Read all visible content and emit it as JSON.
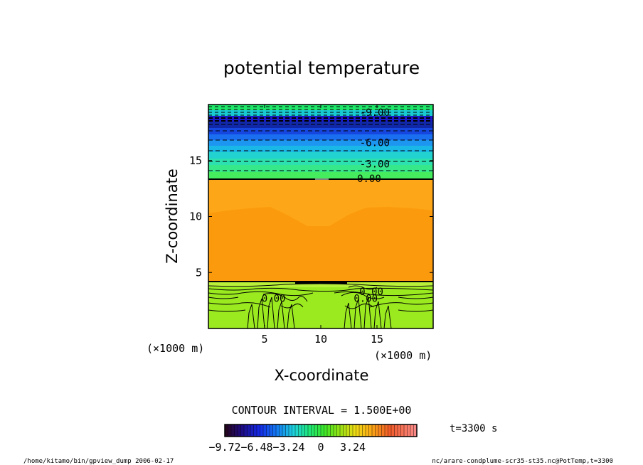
{
  "chart_data": {
    "type": "heatmap",
    "title": "potential temperature",
    "xlabel": "X-coordinate",
    "ylabel": "Z-coordinate",
    "x_unit": "(×1000 m)",
    "y_unit": "(×1000 m)",
    "xlim": [
      0,
      20
    ],
    "ylim": [
      0,
      20
    ],
    "x_ticks": [
      {
        "value": 5,
        "label": "5"
      },
      {
        "value": 10,
        "label": "10"
      },
      {
        "value": 15,
        "label": "15"
      }
    ],
    "y_ticks": [
      {
        "value": 5,
        "label": "5"
      },
      {
        "value": 10,
        "label": "10"
      },
      {
        "value": 15,
        "label": "15"
      }
    ],
    "contour_labels": [
      {
        "text": "-9.00",
        "x": 14.8,
        "z": 19.3
      },
      {
        "text": "-6.00",
        "x": 14.8,
        "z": 16.6
      },
      {
        "text": "-3.00",
        "x": 14.8,
        "z": 14.7
      },
      {
        "text": "0.00",
        "x": 14.3,
        "z": 13.4
      },
      {
        "text": "0.00",
        "x": 5.8,
        "z": 2.7
      },
      {
        "text": "0.00",
        "x": 14.0,
        "z": 2.7
      },
      {
        "text": "0.00",
        "x": 14.5,
        "z": 3.3
      }
    ],
    "contour_interval_label": "CONTOUR INTERVAL = 1.500E+00",
    "colorbar": {
      "min": -9.72,
      "max": 9.72,
      "tick_labels": [
        {
          "value": -9.72,
          "label": "−9.72"
        },
        {
          "value": -6.48,
          "label": "−6.48"
        },
        {
          "value": -3.24,
          "label": "−3.24"
        },
        {
          "value": 0,
          "label": "0"
        },
        {
          "value": 3.24,
          "label": "3.24"
        }
      ]
    },
    "time_label": "t=3300 s"
  },
  "footer": {
    "left": "/home/kitamo/bin/gpview_dump  2006-02-17",
    "right": "nc/arare-condplume-scr35-st35.nc@PotTemp,t=3300"
  }
}
